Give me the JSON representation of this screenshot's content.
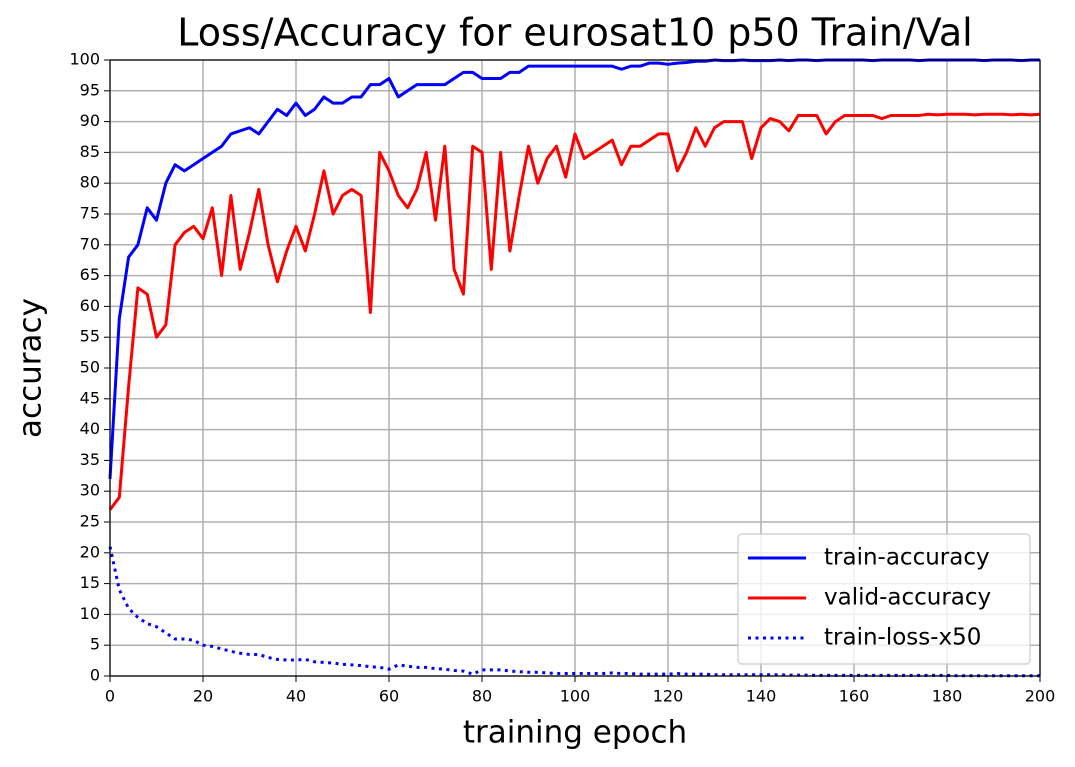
{
  "chart_data": {
    "type": "line",
    "title": "Loss/Accuracy for eurosat10 p50 Train/Val",
    "xlabel": "training epoch",
    "ylabel": "accuracy",
    "x": [
      0,
      2,
      4,
      6,
      8,
      10,
      12,
      14,
      16,
      18,
      20,
      22,
      24,
      26,
      28,
      30,
      32,
      34,
      36,
      38,
      40,
      42,
      44,
      46,
      48,
      50,
      52,
      54,
      56,
      58,
      60,
      62,
      64,
      66,
      68,
      70,
      72,
      74,
      76,
      78,
      80,
      82,
      84,
      86,
      88,
      90,
      92,
      94,
      96,
      98,
      100,
      102,
      104,
      106,
      108,
      110,
      112,
      114,
      116,
      118,
      120,
      122,
      124,
      126,
      128,
      130,
      132,
      134,
      136,
      138,
      140,
      142,
      144,
      146,
      148,
      150,
      152,
      154,
      156,
      158,
      160,
      162,
      164,
      166,
      168,
      170,
      172,
      174,
      176,
      178,
      180,
      182,
      184,
      186,
      188,
      190,
      192,
      194,
      196,
      198,
      200
    ],
    "series": [
      {
        "name": "train-accuracy",
        "color": "#0000ff",
        "linestyle": "solid",
        "values": [
          32,
          58,
          68,
          70,
          76,
          74,
          80,
          83,
          82,
          83,
          84,
          85,
          86,
          88,
          88.5,
          89,
          88,
          90,
          92,
          91,
          93,
          91,
          92,
          94,
          93,
          93,
          94,
          94,
          96,
          96,
          97,
          94,
          95,
          96,
          96,
          96,
          96,
          97,
          98,
          98,
          97,
          97,
          97,
          98,
          98,
          99,
          99,
          99,
          99,
          99,
          99,
          99,
          99,
          99,
          99,
          98.5,
          99,
          99,
          99.5,
          99.5,
          99.3,
          99.5,
          99.6,
          99.8,
          99.8,
          100,
          99.9,
          99.9,
          100,
          99.9,
          99.9,
          99.9,
          100,
          99.9,
          100,
          100,
          99.9,
          100,
          100,
          100,
          100,
          100,
          99.9,
          100,
          100,
          100,
          100,
          99.9,
          100,
          100,
          100,
          100,
          100,
          100,
          99.9,
          100,
          100,
          100,
          99.9,
          100,
          100
        ]
      },
      {
        "name": "valid-accuracy",
        "color": "#ff0000",
        "linestyle": "solid",
        "values": [
          27,
          29,
          47,
          63,
          62,
          55,
          57,
          70,
          72,
          73,
          71,
          76,
          65,
          78,
          66,
          72,
          79,
          70,
          64,
          69,
          73,
          69,
          75,
          82,
          75,
          78,
          79,
          78,
          59,
          85,
          82,
          78,
          76,
          79,
          85,
          74,
          86,
          66,
          62,
          86,
          85,
          66,
          85,
          69,
          78,
          86,
          80,
          84,
          86,
          81,
          88,
          84,
          85,
          86,
          87,
          83,
          86,
          86,
          87,
          88,
          88,
          82,
          85,
          89,
          86,
          89,
          90,
          90,
          90,
          84,
          89,
          90.5,
          90,
          88.5,
          91,
          91,
          91,
          88,
          90,
          91,
          91,
          91,
          91,
          90.5,
          91,
          91,
          91,
          91,
          91.2,
          91.1,
          91.2,
          91.2,
          91.2,
          91.1,
          91.2,
          91.2,
          91.2,
          91.1,
          91.2,
          91.1,
          91.2
        ]
      },
      {
        "name": "train-loss-x50",
        "color": "#0000ff",
        "linestyle": "dotted",
        "values": [
          21,
          14,
          11,
          9.5,
          8.5,
          8,
          7,
          6,
          6,
          5.8,
          5,
          4.8,
          4.4,
          4,
          3.7,
          3.5,
          3.5,
          3,
          2.7,
          2.6,
          2.6,
          2.7,
          2.3,
          2.2,
          2.1,
          1.9,
          1.8,
          1.7,
          1.5,
          1.4,
          1.1,
          1.8,
          1.6,
          1.4,
          1.4,
          1.2,
          1.1,
          0.9,
          0.8,
          0.3,
          1,
          1,
          1,
          0.8,
          0.7,
          0.6,
          0.6,
          0.5,
          0.4,
          0.4,
          0.4,
          0.4,
          0.4,
          0.4,
          0.5,
          0.4,
          0.4,
          0.3,
          0.3,
          0.3,
          0.3,
          0.4,
          0.3,
          0.3,
          0.3,
          0.2,
          0.2,
          0.2,
          0.2,
          0.2,
          0.2,
          0.2,
          0.2,
          0.15,
          0.15,
          0.15,
          0.1,
          0.1,
          0.1,
          0.1,
          0.1,
          0.1,
          0.1,
          0.1,
          0.1,
          0.1,
          0.1,
          0.1,
          0.1,
          0.1,
          0.1,
          0.05,
          0.05,
          0.05,
          0.05,
          0.05,
          0.05,
          0.05,
          0.05,
          0.05,
          0.05
        ]
      }
    ],
    "xlim": [
      0,
      200
    ],
    "xticks": [
      0,
      20,
      40,
      60,
      80,
      100,
      120,
      140,
      160,
      180,
      200
    ],
    "ylim": [
      0,
      100
    ],
    "yticks": [
      0,
      5,
      10,
      15,
      20,
      25,
      30,
      35,
      40,
      45,
      50,
      55,
      60,
      65,
      70,
      75,
      80,
      85,
      90,
      95,
      100
    ],
    "grid": true,
    "legend": "lower right"
  }
}
